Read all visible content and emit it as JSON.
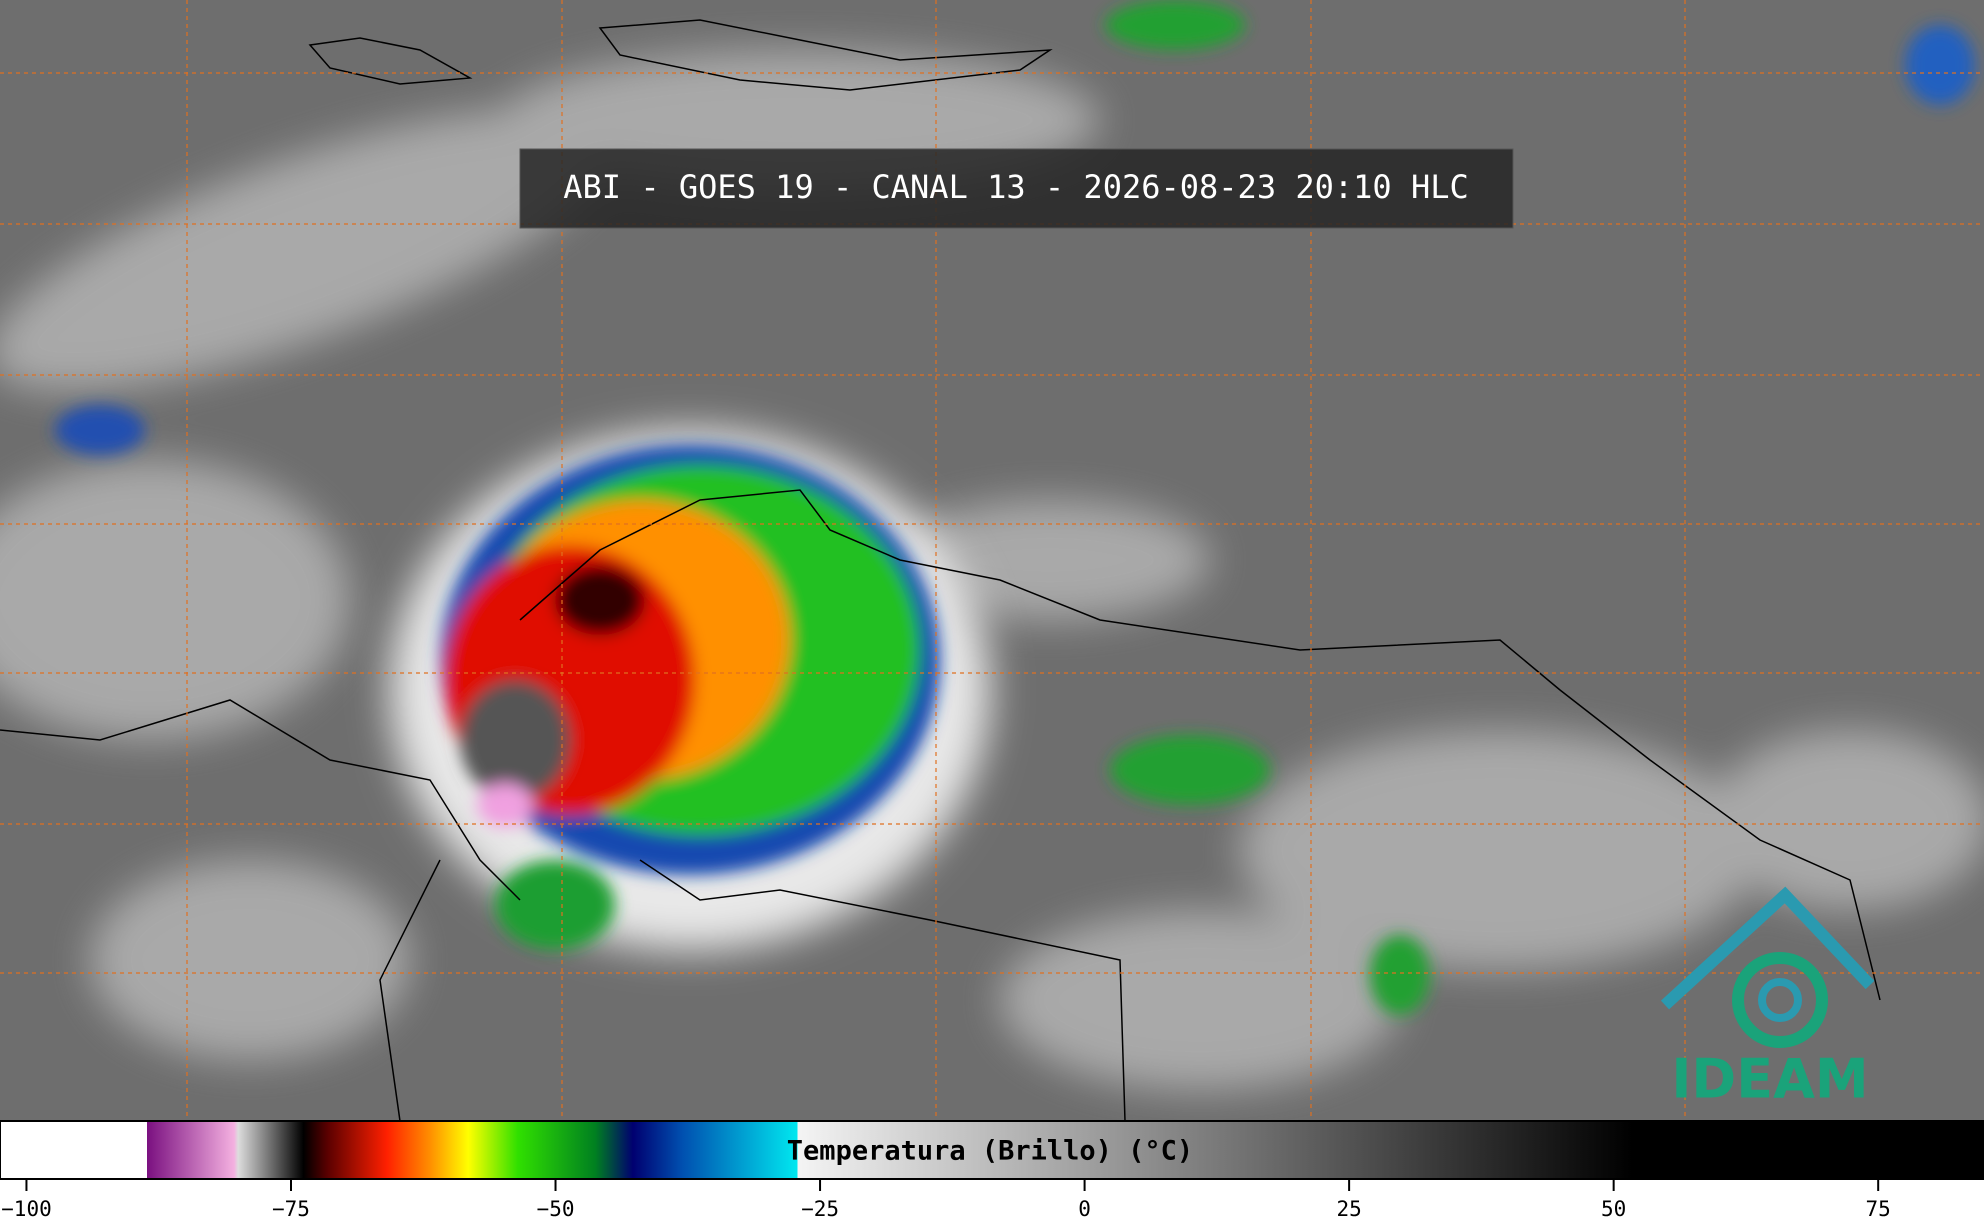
{
  "title": "ABI - GOES 19 - CANAL 13 - 2026-08-23 20:10 HLC",
  "colorbar": {
    "label": "Temperatura (Brillo) (°C)",
    "lim": [
      -102.5,
      85
    ],
    "ticks": [
      {
        "value": -100,
        "label": "−100"
      },
      {
        "value": -75,
        "label": "−75"
      },
      {
        "value": -50,
        "label": "−50"
      },
      {
        "value": -25,
        "label": "−25"
      },
      0,
      25,
      50,
      75
    ]
  },
  "logo": "IDEAM"
}
